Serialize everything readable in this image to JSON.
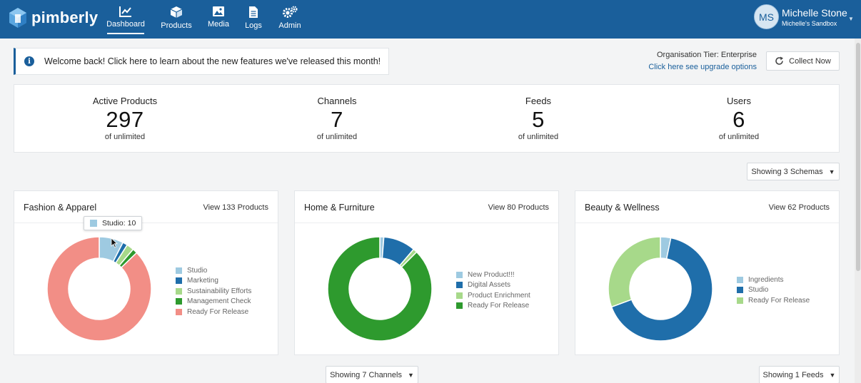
{
  "app": {
    "logo_text": "pimberly"
  },
  "nav": [
    {
      "label": "Dashboard",
      "icon": "dashboard-icon",
      "active": true
    },
    {
      "label": "Products",
      "icon": "box-icon"
    },
    {
      "label": "Media",
      "icon": "image-icon"
    },
    {
      "label": "Logs",
      "icon": "document-icon"
    },
    {
      "label": "Admin",
      "icon": "gears-icon"
    }
  ],
  "user": {
    "initials": "MS",
    "name": "Michelle Stone",
    "sandbox": "Michelle's Sandbox"
  },
  "banner": {
    "text": "Welcome back! Click here to learn about the new features we've released this month!"
  },
  "tier": {
    "line": "Organisation Tier: Enterprise",
    "link": "Click here see upgrade options"
  },
  "collect_label": "Collect Now",
  "stats": [
    {
      "label": "Active Products",
      "value": "297",
      "sub": "of unlimited"
    },
    {
      "label": "Channels",
      "value": "7",
      "sub": "of unlimited"
    },
    {
      "label": "Feeds",
      "value": "5",
      "sub": "of unlimited"
    },
    {
      "label": "Users",
      "value": "6",
      "sub": "of unlimited"
    }
  ],
  "schemas_dropdown": "Showing 3 Schemas",
  "channels_dropdown": "Showing 7 Channels",
  "feeds_dropdown": "Showing 1 Feeds",
  "tooltip": {
    "text": "Studio: 10",
    "color": "#9ecae1"
  },
  "colors": {
    "brand": "#1a5f9b",
    "light_blue": "#9ecae1",
    "dark_blue": "#1f6eaa",
    "light_green": "#a7d98a",
    "dark_green": "#2e9a2e",
    "salmon": "#f28e86"
  },
  "chart_data": [
    {
      "type": "pie",
      "title": "Fashion & Apparel",
      "link": "View 133 Products",
      "categories": [
        "Studio",
        "Marketing",
        "Sustainability Efforts",
        "Management Check",
        "Ready For Release"
      ],
      "values": [
        10,
        2,
        3,
        2,
        116
      ],
      "colors": [
        "#9ecae1",
        "#1f6eaa",
        "#a7d98a",
        "#2e9a2e",
        "#f28e86"
      ]
    },
    {
      "type": "pie",
      "title": "Home & Furniture",
      "link": "View 80 Products",
      "categories": [
        "New Product!!!",
        "Digital Assets",
        "Product Enrichment",
        "Ready For Release"
      ],
      "values": [
        1,
        8,
        1,
        70
      ],
      "colors": [
        "#9ecae1",
        "#1f6eaa",
        "#a7d98a",
        "#2e9a2e"
      ]
    },
    {
      "type": "pie",
      "title": "Beauty & Wellness",
      "link": "View 62 Products",
      "categories": [
        "Ingredients",
        "Studio",
        "Ready For Release"
      ],
      "values": [
        2,
        41,
        19
      ],
      "colors": [
        "#9ecae1",
        "#1f6eaa",
        "#a7d98a"
      ]
    }
  ]
}
